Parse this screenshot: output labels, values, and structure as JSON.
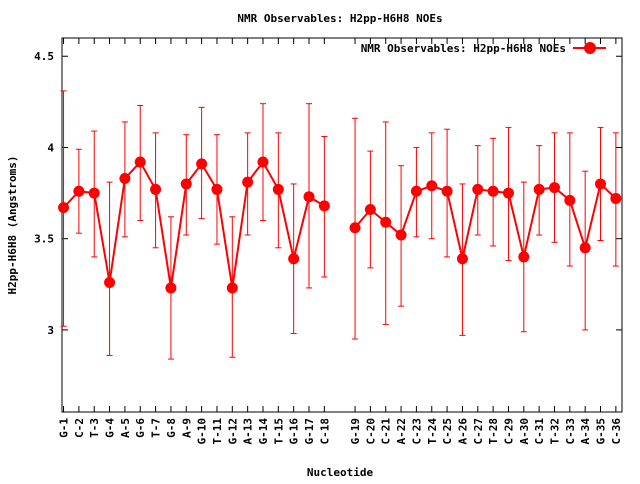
{
  "chart_data": {
    "type": "line",
    "title": "NMR Observables: H2pp-H6H8 NOEs",
    "xlabel": "Nucleotide",
    "ylabel": "H2pp-H6H8 (Angstroms)",
    "ylim": [
      2.55,
      4.6
    ],
    "yticks": [
      3,
      3.5,
      4,
      4.5
    ],
    "ytick_labels": [
      "3",
      "3.5",
      "4",
      "4.5"
    ],
    "legend": {
      "label": "NMR Observables: H2pp-H6H8 NOEs",
      "position": "top-right"
    },
    "series_color": "#ff0000",
    "categories": [
      "G-1",
      "C-2",
      "T-3",
      "G-4",
      "A-5",
      "G-6",
      "T-7",
      "G-8",
      "A-9",
      "G-10",
      "T-11",
      "G-12",
      "A-13",
      "G-14",
      "T-15",
      "G-16",
      "G-17",
      "C-18",
      "G-19",
      "C-20",
      "C-21",
      "A-22",
      "C-23",
      "T-24",
      "C-25",
      "A-26",
      "C-27",
      "T-28",
      "C-29",
      "A-30",
      "C-31",
      "T-32",
      "C-33",
      "A-34",
      "G-35",
      "C-36"
    ],
    "x": [
      1,
      2,
      3,
      4,
      5,
      6,
      7,
      8,
      9,
      10,
      11,
      12,
      13,
      14,
      15,
      16,
      17,
      18,
      20,
      21,
      22,
      23,
      24,
      25,
      26,
      27,
      28,
      29,
      30,
      31,
      32,
      33,
      34,
      35,
      36,
      37
    ],
    "xlim": [
      0.9,
      37.4
    ],
    "values": [
      3.67,
      3.76,
      3.75,
      3.26,
      3.83,
      3.92,
      3.77,
      3.23,
      3.8,
      3.91,
      3.77,
      3.23,
      3.81,
      3.92,
      3.77,
      3.39,
      3.73,
      3.68,
      3.56,
      3.66,
      3.59,
      3.52,
      3.76,
      3.79,
      3.76,
      3.39,
      3.77,
      3.76,
      3.75,
      3.4,
      3.77,
      3.78,
      3.71,
      3.45,
      3.8,
      3.72
    ],
    "err_high": [
      4.31,
      3.99,
      4.09,
      3.81,
      4.14,
      4.23,
      4.08,
      3.62,
      4.07,
      4.22,
      4.07,
      3.62,
      4.08,
      4.24,
      4.08,
      3.8,
      4.24,
      4.06,
      4.16,
      3.98,
      4.14,
      3.9,
      4.0,
      4.08,
      4.1,
      3.8,
      4.01,
      4.05,
      4.11,
      3.81,
      4.01,
      4.08,
      4.08,
      3.87,
      4.11,
      4.08
    ],
    "err_low": [
      3.02,
      3.53,
      3.4,
      2.86,
      3.51,
      3.6,
      3.45,
      2.84,
      3.52,
      3.61,
      3.47,
      2.85,
      3.52,
      3.6,
      3.45,
      2.98,
      3.23,
      3.29,
      2.95,
      3.34,
      3.03,
      3.13,
      3.51,
      3.5,
      3.4,
      2.97,
      3.52,
      3.46,
      3.38,
      2.99,
      3.52,
      3.48,
      3.35,
      3.0,
      3.49,
      3.35
    ]
  }
}
